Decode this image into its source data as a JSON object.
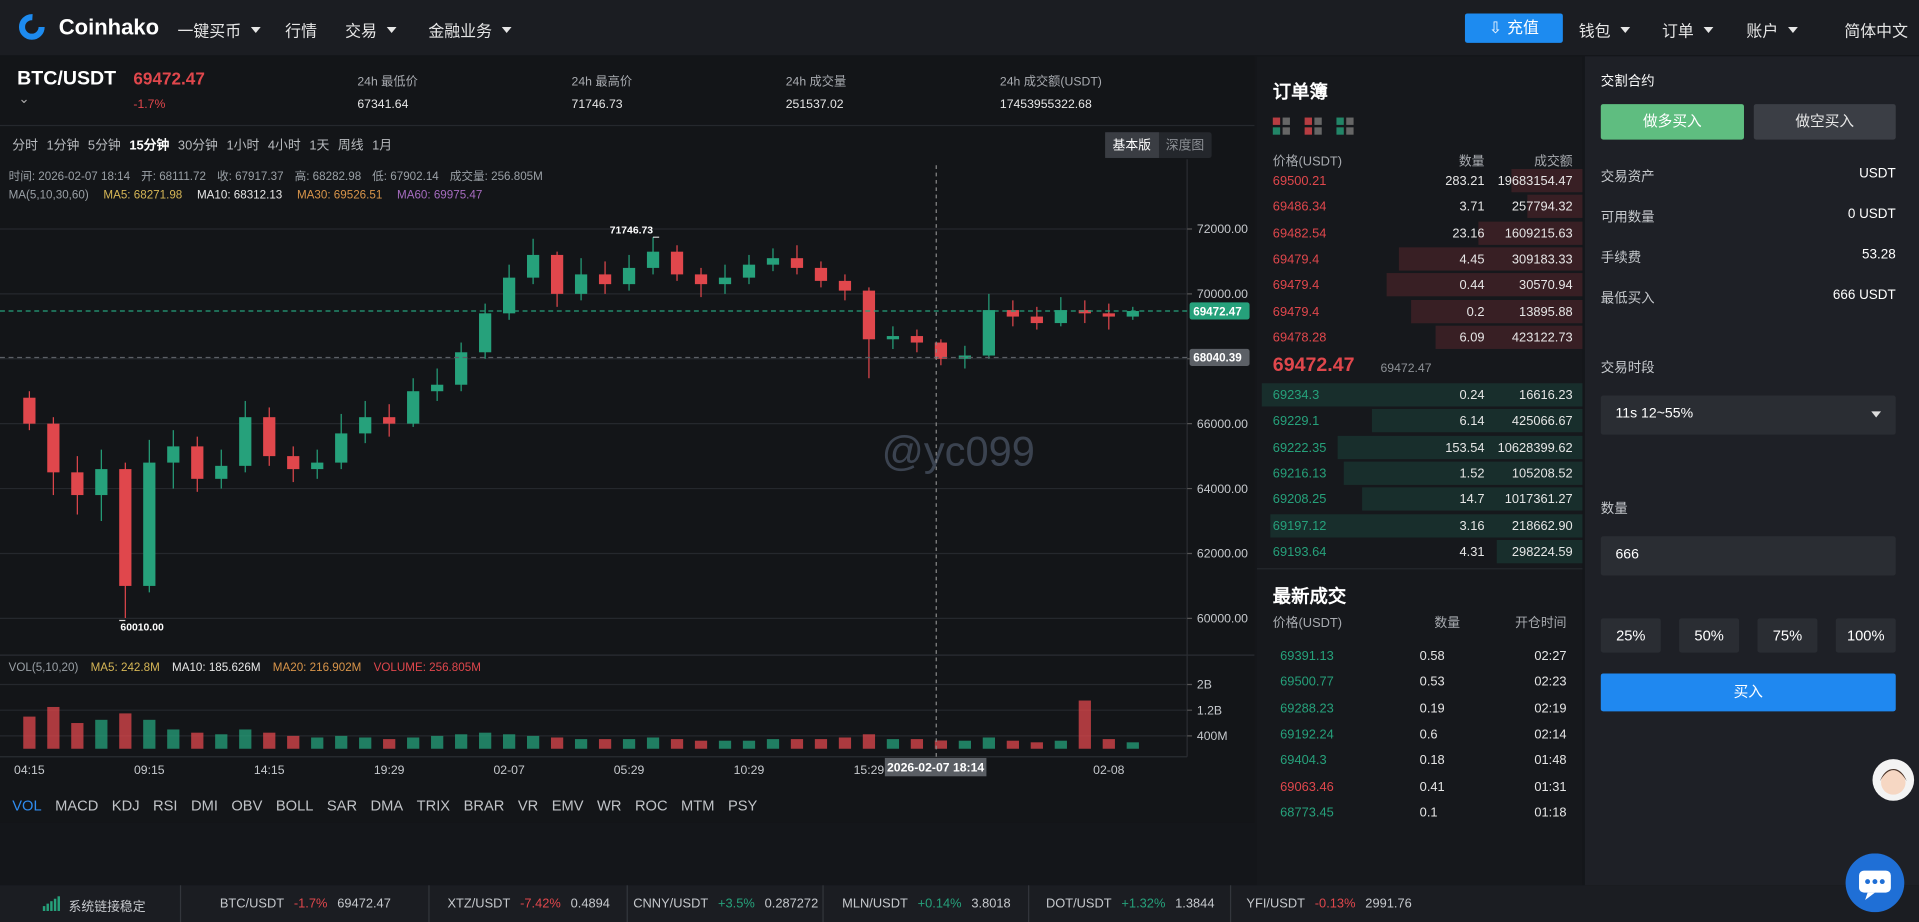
{
  "nav": {
    "brand": "Coinhako",
    "menu": [
      "一键买币",
      "行情",
      "交易",
      "金融业务"
    ],
    "menu_dropdown": [
      true,
      false,
      true,
      true
    ],
    "deposit": "充值",
    "right_menu": [
      "钱包",
      "订单",
      "账户"
    ],
    "language": "简体中文"
  },
  "ticker": {
    "symbol": "BTC/USDT",
    "price": "69472.47",
    "change": "-1.7%",
    "stats": [
      {
        "label": "24h 最低价",
        "value": "67341.64"
      },
      {
        "label": "24h 最高价",
        "value": "71746.73"
      },
      {
        "label": "24h 成交量",
        "value": "251537.02"
      },
      {
        "label": "24h 成交额(USDT)",
        "value": "17453955322.68"
      }
    ]
  },
  "toolbar": {
    "intervals": [
      {
        "label": "分时",
        "active": false
      },
      {
        "label": "1分钟",
        "active": false
      },
      {
        "label": "5分钟",
        "active": false
      },
      {
        "label": "15分钟",
        "active": true
      },
      {
        "label": "30分钟",
        "active": false
      },
      {
        "label": "1小时",
        "active": false
      },
      {
        "label": "4小时",
        "active": false
      },
      {
        "label": "1天",
        "active": false
      },
      {
        "label": "周线",
        "active": false
      },
      {
        "label": "1月",
        "active": false
      }
    ],
    "views": [
      {
        "label": "基本版",
        "active": true
      },
      {
        "label": "深度图",
        "active": false
      }
    ]
  },
  "chart_info": {
    "ohlc": [
      "时间: 2026-02-07 18:14",
      "开: 68111.72",
      "收: 67917.37",
      "高: 68282.98",
      "低: 67902.14",
      "成交量: 256.805M"
    ],
    "ma": [
      {
        "text": "MA(5,10,30,60)",
        "color": "#9aa0a6"
      },
      {
        "text": "MA5: 68271.98",
        "color": "#d6b656"
      },
      {
        "text": "MA10: 68312.13",
        "color": "#e8e8e8"
      },
      {
        "text": "MA30: 69526.51",
        "color": "#d9954a"
      },
      {
        "text": "MA60: 69975.47",
        "color": "#a66cc0"
      }
    ]
  },
  "chart_data": {
    "type": "candlestick",
    "categories": [
      "04:15",
      null,
      null,
      null,
      null,
      "09:15",
      null,
      null,
      null,
      null,
      "14:15",
      null,
      null,
      null,
      null,
      "19:29",
      null,
      null,
      null,
      null,
      "02-07",
      null,
      null,
      null,
      null,
      "05:29",
      null,
      null,
      null,
      null,
      "10:29",
      null,
      null,
      null,
      null,
      "15:29",
      null,
      null,
      null,
      null,
      null,
      null,
      null,
      null,
      null,
      "02-08",
      null
    ],
    "open": [
      66800,
      66000,
      64500,
      63800,
      64600,
      61000,
      64800,
      65300,
      64300,
      64700,
      66200,
      65000,
      64600,
      64800,
      65700,
      66200,
      66000,
      67000,
      67200,
      68200,
      69400,
      70500,
      71200,
      70000,
      70600,
      70300,
      70800,
      71300,
      70600,
      70300,
      70500,
      70900,
      71100,
      70800,
      70400,
      70100,
      68600,
      68700,
      68500,
      68000,
      68100,
      69500,
      69300,
      69100,
      69500,
      69400,
      69300
    ],
    "high": [
      67000,
      66200,
      65000,
      65200,
      64800,
      65500,
      65800,
      65600,
      65200,
      66700,
      66500,
      65300,
      65200,
      66300,
      66700,
      66600,
      67400,
      67700,
      68500,
      69700,
      70900,
      71700,
      71300,
      71100,
      71000,
      71200,
      71746.73,
      71500,
      70800,
      70900,
      71200,
      71400,
      71500,
      71000,
      70600,
      70200,
      69000,
      68900,
      68600,
      68400,
      70000,
      69800,
      69600,
      69900,
      69800,
      69700,
      69600
    ],
    "low": [
      65800,
      63800,
      63200,
      63000,
      60010,
      60800,
      64000,
      63900,
      64000,
      64500,
      64700,
      64200,
      64300,
      64600,
      65400,
      65600,
      65900,
      66700,
      67000,
      68000,
      69200,
      70300,
      69600,
      69800,
      70000,
      70100,
      70600,
      70400,
      69900,
      70000,
      70300,
      70700,
      70600,
      70200,
      69800,
      67400,
      68300,
      68200,
      67800,
      67700,
      68000,
      69000,
      68900,
      69000,
      69100,
      68900,
      69200
    ],
    "close": [
      66000,
      64500,
      63800,
      64600,
      61000,
      64800,
      65300,
      64300,
      64700,
      66200,
      65000,
      64600,
      64800,
      65700,
      66200,
      66000,
      67000,
      67200,
      68200,
      69400,
      70500,
      71200,
      70000,
      70600,
      70300,
      70800,
      71300,
      70600,
      70300,
      70500,
      70900,
      71100,
      70800,
      70400,
      70100,
      68600,
      68700,
      68500,
      68000,
      68100,
      69500,
      69300,
      69100,
      69500,
      69400,
      69300,
      69472.47
    ],
    "up_color": "#26a17b",
    "down_color": "#e0474c",
    "ylim": [
      59050,
      72830
    ],
    "yticks": [
      {
        "value": 60000,
        "label": "60000.00"
      },
      {
        "value": 62000,
        "label": "62000.00"
      },
      {
        "value": 64000,
        "label": "64000.00"
      },
      {
        "value": 66000,
        "label": "66000.00"
      },
      {
        "value": 68000,
        "label": "68000.00"
      },
      {
        "value": 70000,
        "label": "70000.00"
      },
      {
        "value": 72000,
        "label": "72000.00"
      }
    ],
    "grid": true,
    "price_lines": [
      {
        "value": 69472.47,
        "label": "69472.47",
        "color": "#26a17b"
      },
      {
        "value": 68040.39,
        "label": "68040.39",
        "color": "#5c6066"
      }
    ],
    "annotations": [
      {
        "value": 71746.73,
        "label": "71746.73"
      },
      {
        "value": 60010,
        "label": "60010.00"
      }
    ],
    "crosshair_label": "2026-02-07 18:14",
    "watermark": "@yc099",
    "volume": {
      "values": [
        1000000000,
        1300000000,
        800000000,
        900000000,
        1100000000,
        900000000,
        600000000,
        500000000,
        450000000,
        600000000,
        500000000,
        400000000,
        350000000,
        400000000,
        350000000,
        300000000,
        350000000,
        400000000,
        450000000,
        500000000,
        450000000,
        400000000,
        350000000,
        300000000,
        300000000,
        300000000,
        350000000,
        300000000,
        250000000,
        250000000,
        250000000,
        300000000,
        300000000,
        300000000,
        350000000,
        450000000,
        300000000,
        300000000,
        256805000,
        250000000,
        350000000,
        250000000,
        200000000,
        250000000,
        1500000000,
        300000000,
        200000000
      ],
      "ylim": [
        0,
        2800000000
      ],
      "yticks": [
        {
          "value": 400000000,
          "label": "400M"
        },
        {
          "value": 1200000000,
          "label": "1.2B"
        },
        {
          "value": 2000000000,
          "label": "2B"
        }
      ],
      "legend": [
        {
          "text": "VOL(5,10,20)",
          "color": "#9aa0a6"
        },
        {
          "text": "MA5: 242.8M",
          "color": "#d6b656"
        },
        {
          "text": "MA10: 185.626M",
          "color": "#e8e8e8"
        },
        {
          "text": "MA20: 216.902M",
          "color": "#d9954a"
        },
        {
          "text": "VOLUME: 256.805M",
          "color": "#e0474c"
        }
      ]
    }
  },
  "indicators": [
    "VOL",
    "MACD",
    "KDJ",
    "RSI",
    "DMI",
    "OBV",
    "BOLL",
    "SAR",
    "DMA",
    "TRIX",
    "BRAR",
    "VR",
    "EMV",
    "WR",
    "ROC",
    "MTM",
    "PSY"
  ],
  "order_book": {
    "title": "订单簿",
    "columns": [
      "价格(USDT)",
      "数量",
      "成交额"
    ],
    "asks": [
      [
        "69500.21",
        "283.21",
        "19683154.47"
      ],
      [
        "69486.34",
        "3.71",
        "257794.32"
      ],
      [
        "69482.54",
        "23.16",
        "1609215.63"
      ],
      [
        "69479.4",
        "4.45",
        "309183.33"
      ],
      [
        "69479.4",
        "0.44",
        "30570.94"
      ],
      [
        "69479.4",
        "0.2",
        "13895.88"
      ],
      [
        "69478.28",
        "6.09",
        "423122.73"
      ]
    ],
    "last_price": "69472.47",
    "last_price_ref": "69472.47",
    "bids": [
      [
        "69234.3",
        "0.24",
        "16616.23"
      ],
      [
        "69229.1",
        "6.14",
        "425066.67"
      ],
      [
        "69222.35",
        "153.54",
        "10628399.62"
      ],
      [
        "69216.13",
        "1.52",
        "105208.52"
      ],
      [
        "69208.25",
        "14.7",
        "1017361.27"
      ],
      [
        "69197.12",
        "3.16",
        "218662.90"
      ],
      [
        "69193.64",
        "4.31",
        "298224.59"
      ]
    ]
  },
  "trades": {
    "title": "最新成交",
    "columns": [
      "价格(USDT)",
      "数量",
      "开仓时间"
    ],
    "rows": [
      {
        "price": "69391.13",
        "qty": "0.58",
        "time": "02:27",
        "side": "buy"
      },
      {
        "price": "69500.77",
        "qty": "0.53",
        "time": "02:23",
        "side": "buy"
      },
      {
        "price": "69288.23",
        "qty": "0.19",
        "time": "02:19",
        "side": "buy"
      },
      {
        "price": "69192.24",
        "qty": "0.6",
        "time": "02:14",
        "side": "buy"
      },
      {
        "price": "69404.3",
        "qty": "0.18",
        "time": "01:48",
        "side": "buy"
      },
      {
        "price": "69063.46",
        "qty": "0.41",
        "time": "01:31",
        "side": "sell"
      },
      {
        "price": "68773.45",
        "qty": "0.1",
        "time": "01:18",
        "side": "buy"
      }
    ]
  },
  "order_panel": {
    "title": "交割合约",
    "long": "做多买入",
    "short": "做空买入",
    "info": [
      {
        "label": "交易资产",
        "value": "USDT"
      },
      {
        "label": "可用数量",
        "value": "0 USDT"
      },
      {
        "label": "手续费",
        "value": "53.28"
      },
      {
        "label": "最低买入",
        "value": "666 USDT"
      }
    ],
    "period_label": "交易时段",
    "period": "11s 12~55%",
    "qty_label": "数量",
    "qty": "666",
    "percents": [
      "25%",
      "50%",
      "75%",
      "100%"
    ],
    "submit": "买入"
  },
  "footer": {
    "status": "系统链接稳定",
    "tickers": [
      {
        "symbol": "BTC/USDT",
        "change": "-1.7%",
        "price": "69472.47",
        "dir": "down"
      },
      {
        "symbol": "XTZ/USDT",
        "change": "-7.42%",
        "price": "0.4894",
        "dir": "down"
      },
      {
        "symbol": "CNNY/USDT",
        "change": "+3.5%",
        "price": "0.287272",
        "dir": "up"
      },
      {
        "symbol": "MLN/USDT",
        "change": "+0.14%",
        "price": "3.8018",
        "dir": "up"
      },
      {
        "symbol": "DOT/USDT",
        "change": "+1.32%",
        "price": "1.3844",
        "dir": "up"
      },
      {
        "symbol": "YFI/USDT",
        "change": "-0.13%",
        "price": "2991.76",
        "dir": "down"
      }
    ]
  }
}
